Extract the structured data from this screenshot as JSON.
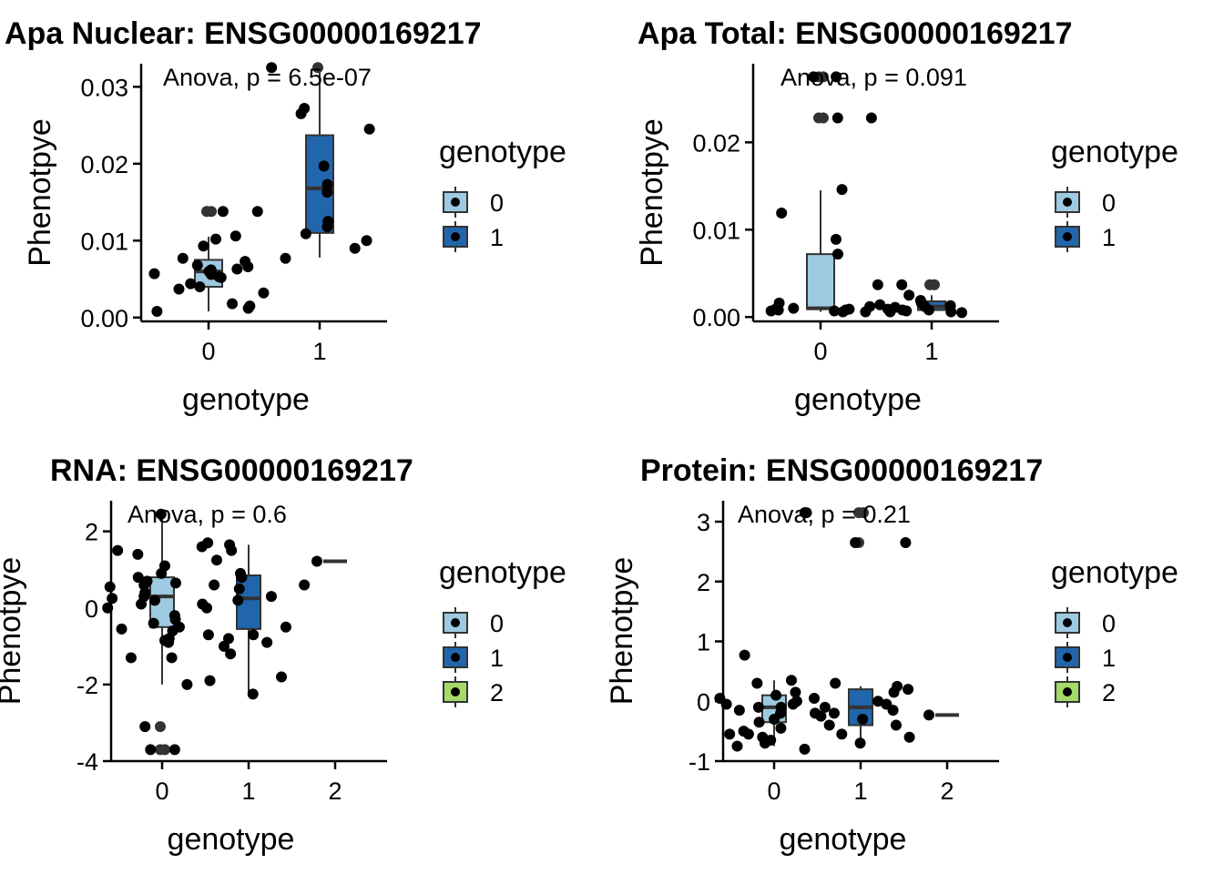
{
  "chart_data": [
    {
      "type": "box",
      "title": "Apa Nuclear: ENSG00000169217",
      "xlabel": "genotype",
      "ylabel": "Phenotpye",
      "annotation": "Anova, p = 6.5e-07",
      "categories": [
        "0",
        "1"
      ],
      "ylim": [
        -0.0005,
        0.033
      ],
      "yticks": [
        0,
        0.01,
        0.02,
        0.03
      ],
      "ytick_labels": [
        "0.00",
        "0.01",
        "0.02",
        "0.03"
      ],
      "legend_title": "genotype",
      "legend_position": "right",
      "boxes": [
        {
          "group": "0",
          "q1": 0.004,
          "median": 0.006,
          "q3": 0.0075,
          "whisker_low": 0.0008,
          "whisker_high": 0.0105,
          "outliers": [
            0.0138,
            0.0138
          ]
        },
        {
          "group": "1",
          "q1": 0.011,
          "median": 0.0168,
          "q3": 0.0237,
          "whisker_low": 0.0078,
          "whisker_high": 0.032,
          "outliers": [
            0.0325
          ]
        }
      ],
      "points": [
        {
          "group": "0",
          "y": [
            0.0106,
            0.0102,
            0.0093,
            0.0077,
            0.0073,
            0.0063,
            0.006,
            0.0056,
            0.0062,
            0.0057,
            0.0053,
            0.0052,
            0.0068,
            0.0066,
            0.0044,
            0.004,
            0.0037,
            0.0032,
            0.0018,
            0.0015,
            0.0012,
            0.0008,
            0.0138,
            0.0138
          ]
        },
        {
          "group": "1",
          "y": [
            0.0325,
            0.0272,
            0.0265,
            0.0245,
            0.0197,
            0.0173,
            0.0163,
            0.0125,
            0.0118,
            0.0109,
            0.01,
            0.009,
            0.0077
          ]
        }
      ]
    },
    {
      "type": "box",
      "title": "Apa Total: ENSG00000169217",
      "xlabel": "genotype",
      "ylabel": "Phenotpye",
      "annotation": "Anova, p = 0.091",
      "categories": [
        "0",
        "1"
      ],
      "ylim": [
        -0.0005,
        0.029
      ],
      "yticks": [
        0,
        0.01,
        0.02
      ],
      "ytick_labels": [
        "0.00",
        "0.01",
        "0.02"
      ],
      "legend_title": "genotype",
      "legend_position": "right",
      "boxes": [
        {
          "group": "0",
          "q1": 0.0009,
          "median": 0.001,
          "q3": 0.0072,
          "whisker_low": 0.0006,
          "whisker_high": 0.0145,
          "outliers": [
            0.0228,
            0.0228,
            0.0275,
            0.0275
          ]
        },
        {
          "group": "1",
          "q1": 0.0008,
          "median": 0.0012,
          "q3": 0.0018,
          "whisker_low": 0.0005,
          "whisker_high": 0.0025,
          "outliers": [
            0.0037,
            0.0037
          ]
        }
      ],
      "points": [
        {
          "group": "0",
          "y": [
            0.0275,
            0.0275,
            0.0228,
            0.0228,
            0.0146,
            0.0119,
            0.0089,
            0.0072,
            0.0016,
            0.0012,
            0.001,
            0.0009,
            0.0009,
            0.0008,
            0.0008,
            0.0007,
            0.0007,
            0.0006,
            0.0006
          ]
        },
        {
          "group": "1",
          "y": [
            0.0037,
            0.0037,
            0.0025,
            0.0019,
            0.0016,
            0.0014,
            0.0013,
            0.0012,
            0.0011,
            0.0009,
            0.0008,
            0.0008,
            0.0007,
            0.0006,
            0.0006,
            0.0005
          ]
        }
      ]
    },
    {
      "type": "box",
      "title": "RNA: ENSG00000169217",
      "xlabel": "genotype",
      "ylabel": "Phenotpye",
      "annotation": "Anova, p = 0.6",
      "categories": [
        "0",
        "1",
        "2"
      ],
      "ylim": [
        -4,
        2.8
      ],
      "yticks": [
        -4,
        -2,
        0,
        2
      ],
      "ytick_labels": [
        "-4",
        "-2",
        "0",
        "2"
      ],
      "legend_title": "genotype",
      "legend_position": "right",
      "boxes": [
        {
          "group": "0",
          "q1": -0.5,
          "median": 0.3,
          "q3": 0.8,
          "whisker_low": -2.0,
          "whisker_high": 2.5,
          "outliers": [
            -3.1,
            -3.7,
            -3.7
          ]
        },
        {
          "group": "1",
          "q1": -0.55,
          "median": 0.25,
          "q3": 0.85,
          "whisker_low": -2.3,
          "whisker_high": 1.65,
          "outliers": []
        },
        {
          "group": "2",
          "q1": 1.22,
          "median": 1.22,
          "q3": 1.22,
          "whisker_low": 1.22,
          "whisker_high": 1.22,
          "outliers": []
        }
      ],
      "points": [
        {
          "group": "0",
          "y": [
            2.45,
            1.7,
            1.6,
            1.5,
            1.4,
            1.25,
            1.1,
            0.9,
            0.8,
            0.7,
            0.65,
            0.6,
            0.6,
            0.55,
            0.4,
            0.3,
            0.25,
            0.2,
            0.1,
            0.0,
            -0.2,
            -0.3,
            -0.4,
            -0.5,
            -0.55,
            -0.6,
            -0.7,
            -0.8,
            -0.85,
            -0.9,
            -1.3,
            -1.3,
            -1.9,
            -2.0,
            -3.1,
            -3.7,
            -3.7
          ]
        },
        {
          "group": "1",
          "y": [
            1.65,
            1.5,
            0.9,
            0.8,
            0.6,
            0.5,
            0.3,
            0.2,
            0.1,
            0.0,
            -0.5,
            -0.7,
            -0.8,
            -0.9,
            -1.0,
            -1.2,
            -1.8,
            -2.25
          ]
        },
        {
          "group": "2",
          "y": [
            1.22
          ]
        }
      ]
    },
    {
      "type": "box",
      "title": "Protein: ENSG00000169217",
      "xlabel": "genotype",
      "ylabel": "Phenotpye",
      "annotation": "Anova, p = 0.21",
      "categories": [
        "0",
        "1",
        "2"
      ],
      "ylim": [
        -1,
        3.35
      ],
      "yticks": [
        -1,
        0,
        1,
        2,
        3
      ],
      "ytick_labels": [
        "-1",
        "0",
        "1",
        "2",
        "3"
      ],
      "legend_title": "genotype",
      "legend_position": "right",
      "boxes": [
        {
          "group": "0",
          "q1": -0.35,
          "median": -0.1,
          "q3": 0.1,
          "whisker_low": -0.75,
          "whisker_high": 0.35,
          "outliers": []
        },
        {
          "group": "1",
          "q1": -0.4,
          "median": -0.1,
          "q3": 0.2,
          "whisker_low": -0.75,
          "whisker_high": 0.25,
          "outliers": [
            2.65,
            3.15,
            3.15
          ]
        },
        {
          "group": "2",
          "q1": -0.23,
          "median": -0.23,
          "q3": -0.23,
          "whisker_low": -0.23,
          "whisker_high": -0.23,
          "outliers": []
        }
      ],
      "points": [
        {
          "group": "0",
          "y": [
            0.77,
            0.35,
            0.3,
            0.15,
            0.1,
            0.05,
            0.05,
            0.0,
            -0.05,
            -0.05,
            -0.1,
            -0.1,
            -0.15,
            -0.2,
            -0.2,
            -0.25,
            -0.3,
            -0.35,
            -0.4,
            -0.45,
            -0.5,
            -0.55,
            -0.55,
            -0.6,
            -0.65,
            -0.7,
            -0.75,
            -0.8
          ]
        },
        {
          "group": "1",
          "y": [
            3.15,
            3.15,
            2.65,
            2.65,
            0.3,
            0.25,
            0.2,
            0.15,
            0.0,
            -0.05,
            -0.1,
            -0.15,
            -0.2,
            -0.3,
            -0.4,
            -0.55,
            -0.6,
            -0.7
          ]
        },
        {
          "group": "2",
          "y": [
            -0.23
          ]
        }
      ]
    }
  ],
  "legend": {
    "title": "genotype",
    "items": [
      {
        "label": "0",
        "color": "#9ecae1"
      },
      {
        "label": "1",
        "color": "#2166ac"
      },
      {
        "label": "2",
        "color": "#a6d96a"
      }
    ]
  },
  "colors": {
    "box_0": "#9ecae1",
    "box_1": "#2166ac",
    "box_2": "#a6d96a",
    "point": "#000000"
  }
}
